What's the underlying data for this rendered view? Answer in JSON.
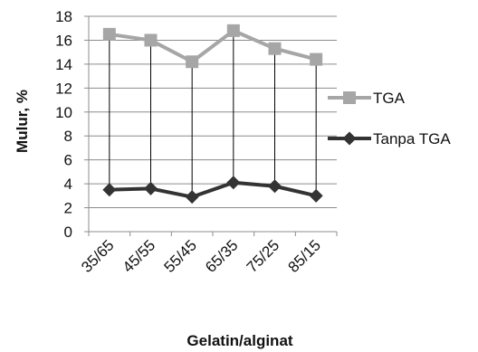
{
  "chart_data": {
    "type": "line",
    "categories": [
      "35/65",
      "45/55",
      "55/45",
      "65/35",
      "75/25",
      "85/15"
    ],
    "series": [
      {
        "name": "TGA",
        "values": [
          16.5,
          16.0,
          14.2,
          16.8,
          15.3,
          14.4
        ],
        "color": "#a6a6a6",
        "marker": "square"
      },
      {
        "name": "Tanpa TGA",
        "values": [
          3.5,
          3.6,
          2.9,
          4.1,
          3.8,
          3.0
        ],
        "color": "#333333",
        "marker": "diamond"
      }
    ],
    "title": "",
    "xlabel": "Gelatin/alginat",
    "ylabel": "Mulur, %",
    "ylim": [
      0,
      18
    ],
    "yticks": [
      0,
      2,
      4,
      6,
      8,
      10,
      12,
      14,
      16,
      18
    ],
    "grid": true,
    "drop_lines": true,
    "legend": "right"
  }
}
